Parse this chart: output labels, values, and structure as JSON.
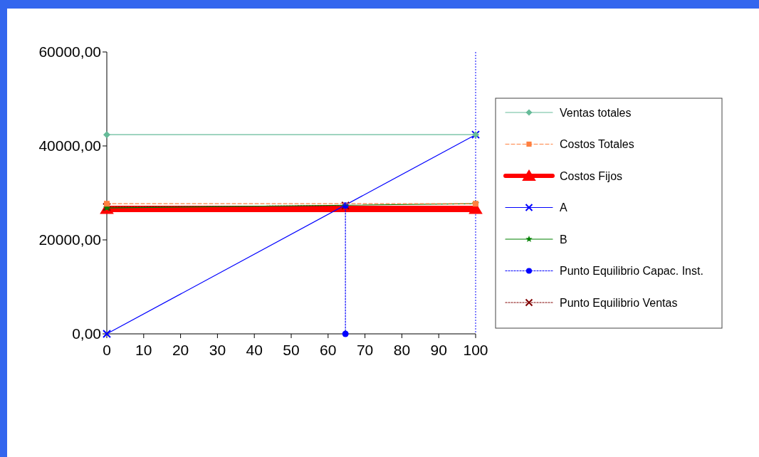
{
  "chart_data": {
    "type": "line",
    "xlim": [
      0,
      100
    ],
    "xticks": [
      0,
      10,
      20,
      30,
      40,
      50,
      60,
      70,
      80,
      90,
      100
    ],
    "ylim": [
      0,
      60000
    ],
    "yticks": [
      {
        "value": 0,
        "label": "0,00"
      },
      {
        "value": 20000,
        "label": "20000,00"
      },
      {
        "value": 40000,
        "label": "40000,00"
      },
      {
        "value": 60000,
        "label": "60000,00"
      }
    ],
    "legend": "right",
    "grid": false,
    "ref_lines": [
      {
        "axis": "x",
        "value": 100,
        "color": "#0000ff",
        "line_style": "dotted"
      }
    ],
    "series": [
      {
        "name": "Ventas totales",
        "color": "#66bb99",
        "marker": "diamond",
        "line_style": "solid",
        "x": [
          0,
          100
        ],
        "values": [
          42400,
          42400
        ]
      },
      {
        "name": "Costos Totales",
        "color": "#ff8040",
        "marker": "square",
        "line_style": "dashed",
        "x": [
          0,
          100
        ],
        "values": [
          27700,
          27700
        ]
      },
      {
        "name": "Costos Fijos",
        "color": "#ff0000",
        "marker": "triangle",
        "line_style": "solid",
        "x": [
          0,
          100
        ],
        "values": [
          26600,
          26600
        ]
      },
      {
        "name": "A",
        "color": "#0000ff",
        "marker": "cross",
        "line_style": "solid",
        "x": [
          0,
          100
        ],
        "values": [
          0,
          42400
        ]
      },
      {
        "name": "B",
        "color": "#008000",
        "marker": "star",
        "line_style": "solid",
        "x": [
          0,
          100
        ],
        "values": [
          26800,
          27700
        ]
      },
      {
        "name": "Punto Equilibrio Capac. Inst.",
        "color": "#0000ff",
        "marker": "circle",
        "line_style": "dotted",
        "x": [
          64.7,
          64.7
        ],
        "values": [
          0,
          27300
        ]
      },
      {
        "name": "Punto Equilibrio Ventas",
        "color": "#800000",
        "marker": "cross",
        "line_style": "dotted",
        "x": [
          0,
          64.7
        ],
        "values": [
          27000,
          27300
        ]
      }
    ]
  }
}
